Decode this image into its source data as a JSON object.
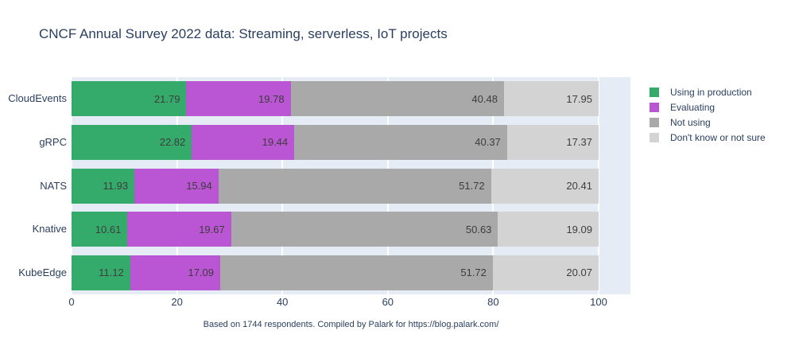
{
  "title": "CNCF Annual Survey 2022 data: Streaming, serverless, IoT projects",
  "footer": "Based on 1744 respondents. Compiled by Palark for https://blog.palark.com/",
  "colors": {
    "plot_background": "#e5ecf6",
    "page_background": "#ffffff",
    "text": "#2a3f5f",
    "bar_label_text": "#3d3d3d",
    "gridline": "#ffffff"
  },
  "chart_data": {
    "type": "bar",
    "orientation": "horizontal",
    "stacked": true,
    "title": "CNCF Annual Survey 2022 data: Streaming, serverless, IoT projects",
    "categories": [
      "CloudEvents",
      "gRPC",
      "NATS",
      "Knative",
      "KubeEdge"
    ],
    "series": [
      {
        "name": "Using in production",
        "color": "#35ab6b",
        "values": [
          21.79,
          22.82,
          11.93,
          10.61,
          11.12
        ]
      },
      {
        "name": "Evaluating",
        "color": "#ba55d3",
        "values": [
          19.78,
          19.44,
          15.94,
          19.67,
          17.09
        ]
      },
      {
        "name": "Not using",
        "color": "#a9a9a9",
        "values": [
          40.48,
          40.37,
          51.72,
          50.63,
          51.72
        ]
      },
      {
        "name": "Don't know or not sure",
        "color": "#d3d3d3",
        "values": [
          17.95,
          17.37,
          20.41,
          19.09,
          20.07
        ]
      }
    ],
    "xlabel": "",
    "ylabel": "",
    "xlim": [
      0,
      100
    ],
    "xticks": [
      0,
      20,
      40,
      60,
      80,
      100
    ],
    "grid": true,
    "legend_position": "right",
    "value_labels": "inside-right",
    "annotation": "Based on 1744 respondents. Compiled by Palark for https://blog.palark.com/"
  }
}
